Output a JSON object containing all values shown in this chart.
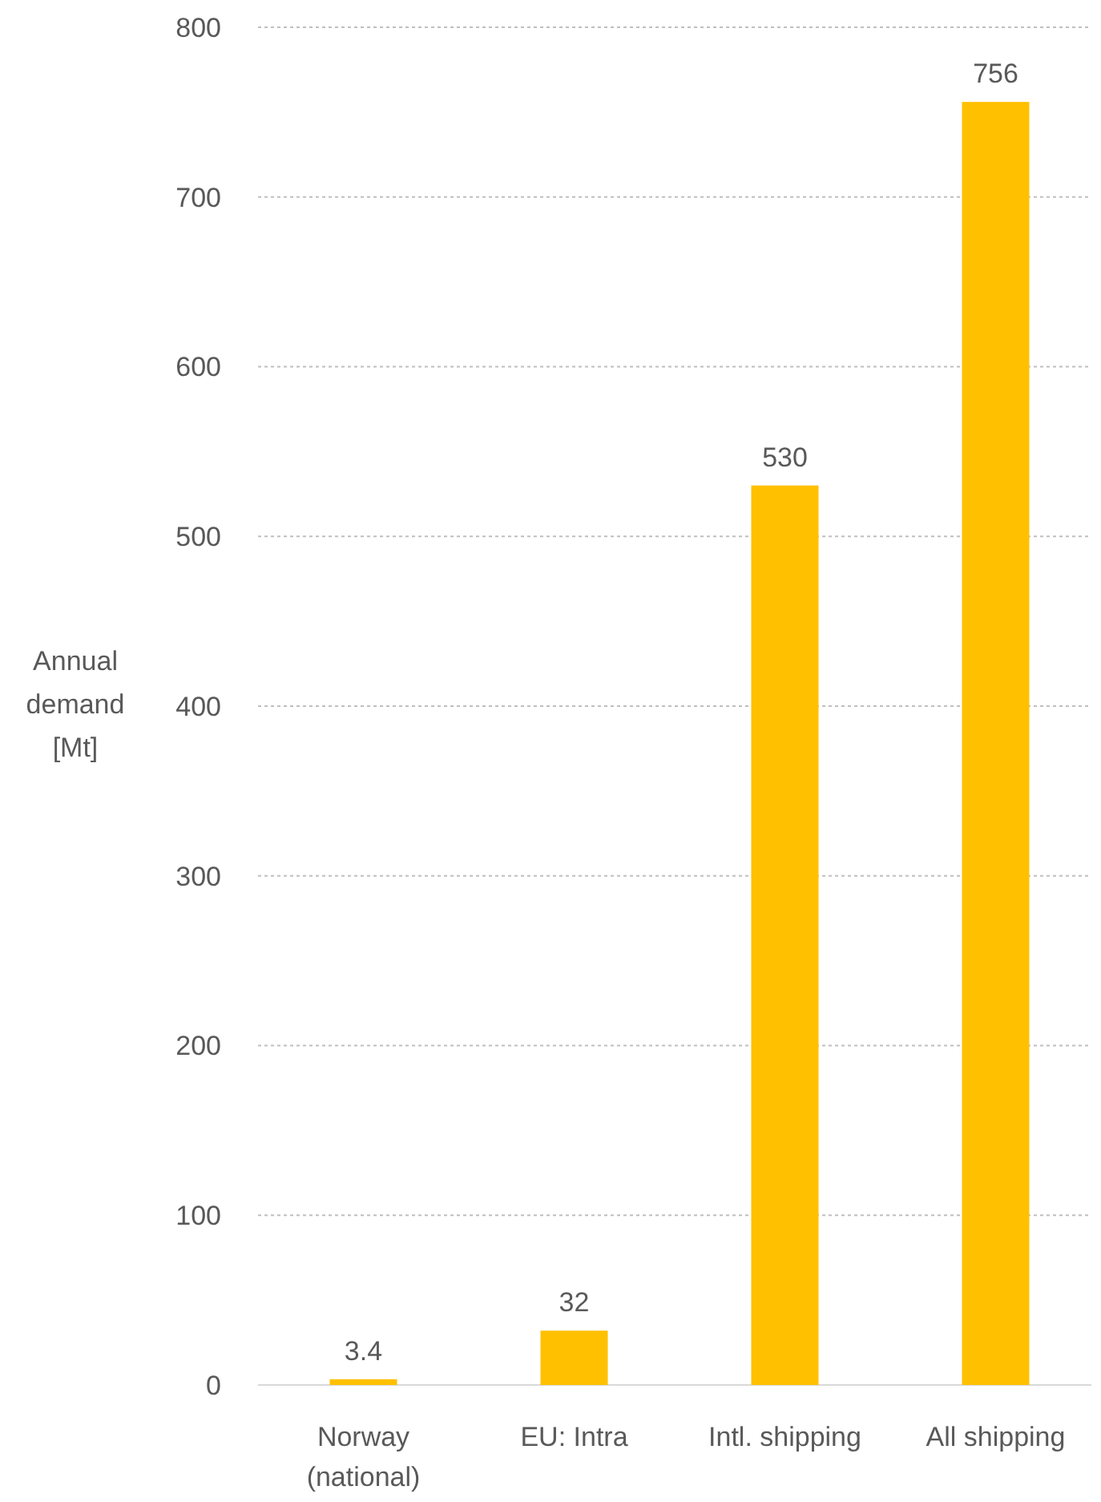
{
  "chart_data": {
    "type": "bar",
    "ylabel": "Annual demand [Mt]",
    "categories": [
      "Norway\n(national)",
      "EU: Intra",
      "Intl. shipping",
      "All shipping"
    ],
    "values": [
      3.4,
      32,
      530,
      756
    ],
    "color": "#ffc000",
    "ylim": [
      0,
      800
    ],
    "yticks": [
      0,
      100,
      200,
      300,
      400,
      500,
      600,
      700,
      800
    ],
    "grid": "y",
    "data_labels": true
  }
}
